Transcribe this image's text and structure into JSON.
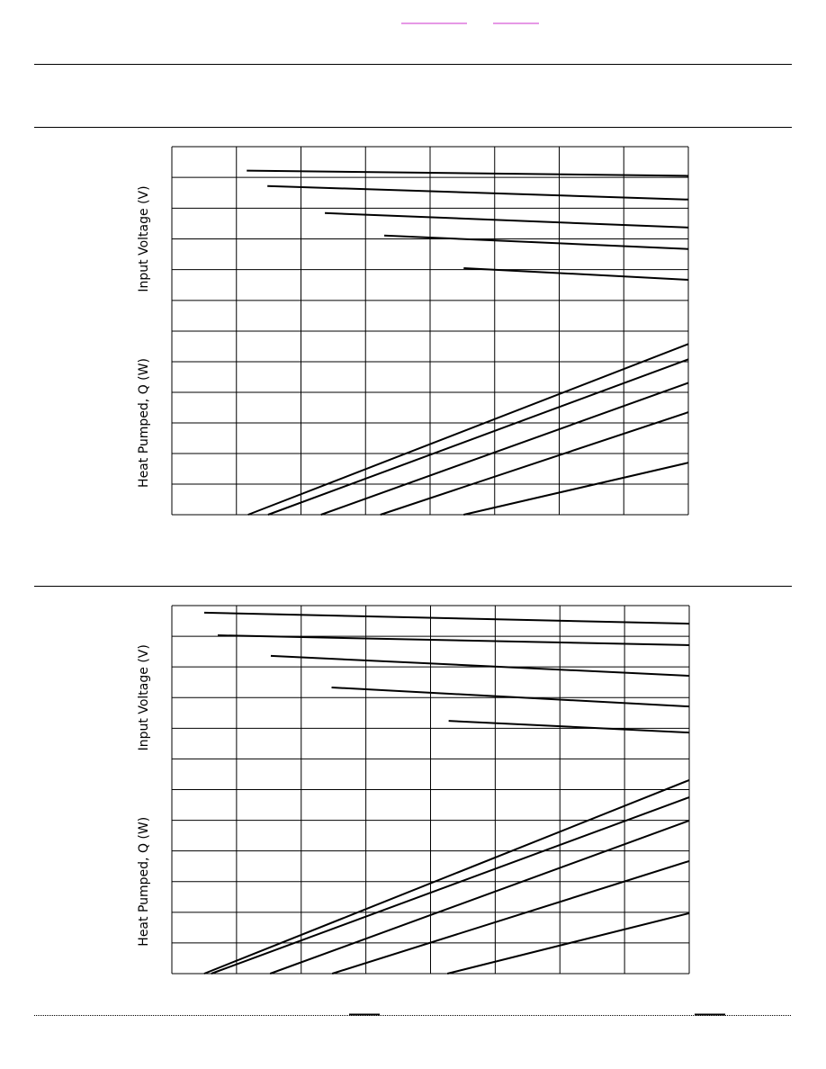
{
  "chart_data": [
    {
      "type": "line",
      "ylabel": "Input Voltage (V)",
      "xlim": [
        0,
        8
      ],
      "ylim": [
        0,
        6
      ],
      "xticks": [
        0,
        1,
        2,
        3,
        4,
        5,
        6,
        7,
        8
      ],
      "yticks": [
        0,
        1,
        2,
        3,
        4,
        5,
        6
      ],
      "grid": true,
      "color": "#000000",
      "series": [
        {
          "x": [
            1.16,
            8
          ],
          "values": [
            5.22,
            5.05
          ]
        },
        {
          "x": [
            1.48,
            8
          ],
          "values": [
            4.72,
            4.28
          ]
        },
        {
          "x": [
            2.37,
            8
          ],
          "values": [
            3.84,
            3.37
          ]
        },
        {
          "x": [
            3.29,
            8
          ],
          "values": [
            3.11,
            2.67
          ]
        },
        {
          "x": [
            4.52,
            8
          ],
          "values": [
            2.05,
            1.67
          ]
        }
      ]
    },
    {
      "type": "line",
      "ylabel": "Heat Pumped, Q (W)",
      "xlim": [
        0,
        8
      ],
      "ylim": [
        0,
        6
      ],
      "xticks": [
        0,
        1,
        2,
        3,
        4,
        5,
        6,
        7,
        8
      ],
      "yticks": [
        0,
        1,
        2,
        3,
        4,
        5,
        6
      ],
      "grid": true,
      "color": "#000000",
      "series": [
        {
          "x": [
            1.18,
            8
          ],
          "values": [
            0,
            5.58
          ]
        },
        {
          "x": [
            1.49,
            8
          ],
          "values": [
            0,
            5.08
          ]
        },
        {
          "x": [
            2.31,
            8
          ],
          "values": [
            0,
            4.31
          ]
        },
        {
          "x": [
            3.23,
            8
          ],
          "values": [
            0,
            3.35
          ]
        },
        {
          "x": [
            4.52,
            8
          ],
          "values": [
            0,
            1.7
          ]
        }
      ]
    },
    {
      "type": "line",
      "ylabel": "Input Voltage (V)",
      "xlim": [
        0,
        8
      ],
      "ylim": [
        0,
        6
      ],
      "xticks": [
        0,
        1,
        2,
        3,
        4,
        5,
        6,
        7,
        8
      ],
      "yticks": [
        0,
        1,
        2,
        3,
        4,
        5,
        6
      ],
      "grid": true,
      "color": "#000000",
      "series": [
        {
          "x": [
            0.5,
            8
          ],
          "values": [
            5.77,
            5.41
          ]
        },
        {
          "x": [
            0.71,
            8
          ],
          "values": [
            5.03,
            4.71
          ]
        },
        {
          "x": [
            1.53,
            8
          ],
          "values": [
            4.36,
            3.71
          ]
        },
        {
          "x": [
            2.47,
            8
          ],
          "values": [
            3.33,
            2.71
          ]
        },
        {
          "x": [
            4.28,
            8
          ],
          "values": [
            2.24,
            1.86
          ]
        }
      ]
    },
    {
      "type": "line",
      "ylabel": "Heat Pumped, Q (W)",
      "xlim": [
        0,
        8
      ],
      "ylim": [
        0,
        6
      ],
      "xticks": [
        0,
        1,
        2,
        3,
        4,
        5,
        6,
        7,
        8
      ],
      "yticks": [
        0,
        1,
        2,
        3,
        4,
        5,
        6
      ],
      "grid": true,
      "color": "#000000",
      "series": [
        {
          "x": [
            0.5,
            8
          ],
          "values": [
            0,
            6.31
          ]
        },
        {
          "x": [
            0.61,
            8
          ],
          "values": [
            0,
            5.75
          ]
        },
        {
          "x": [
            1.52,
            8
          ],
          "values": [
            0,
            4.99
          ]
        },
        {
          "x": [
            2.48,
            8
          ],
          "values": [
            0,
            3.67
          ]
        },
        {
          "x": [
            4.26,
            8
          ],
          "values": [
            0,
            1.97
          ]
        }
      ]
    }
  ]
}
